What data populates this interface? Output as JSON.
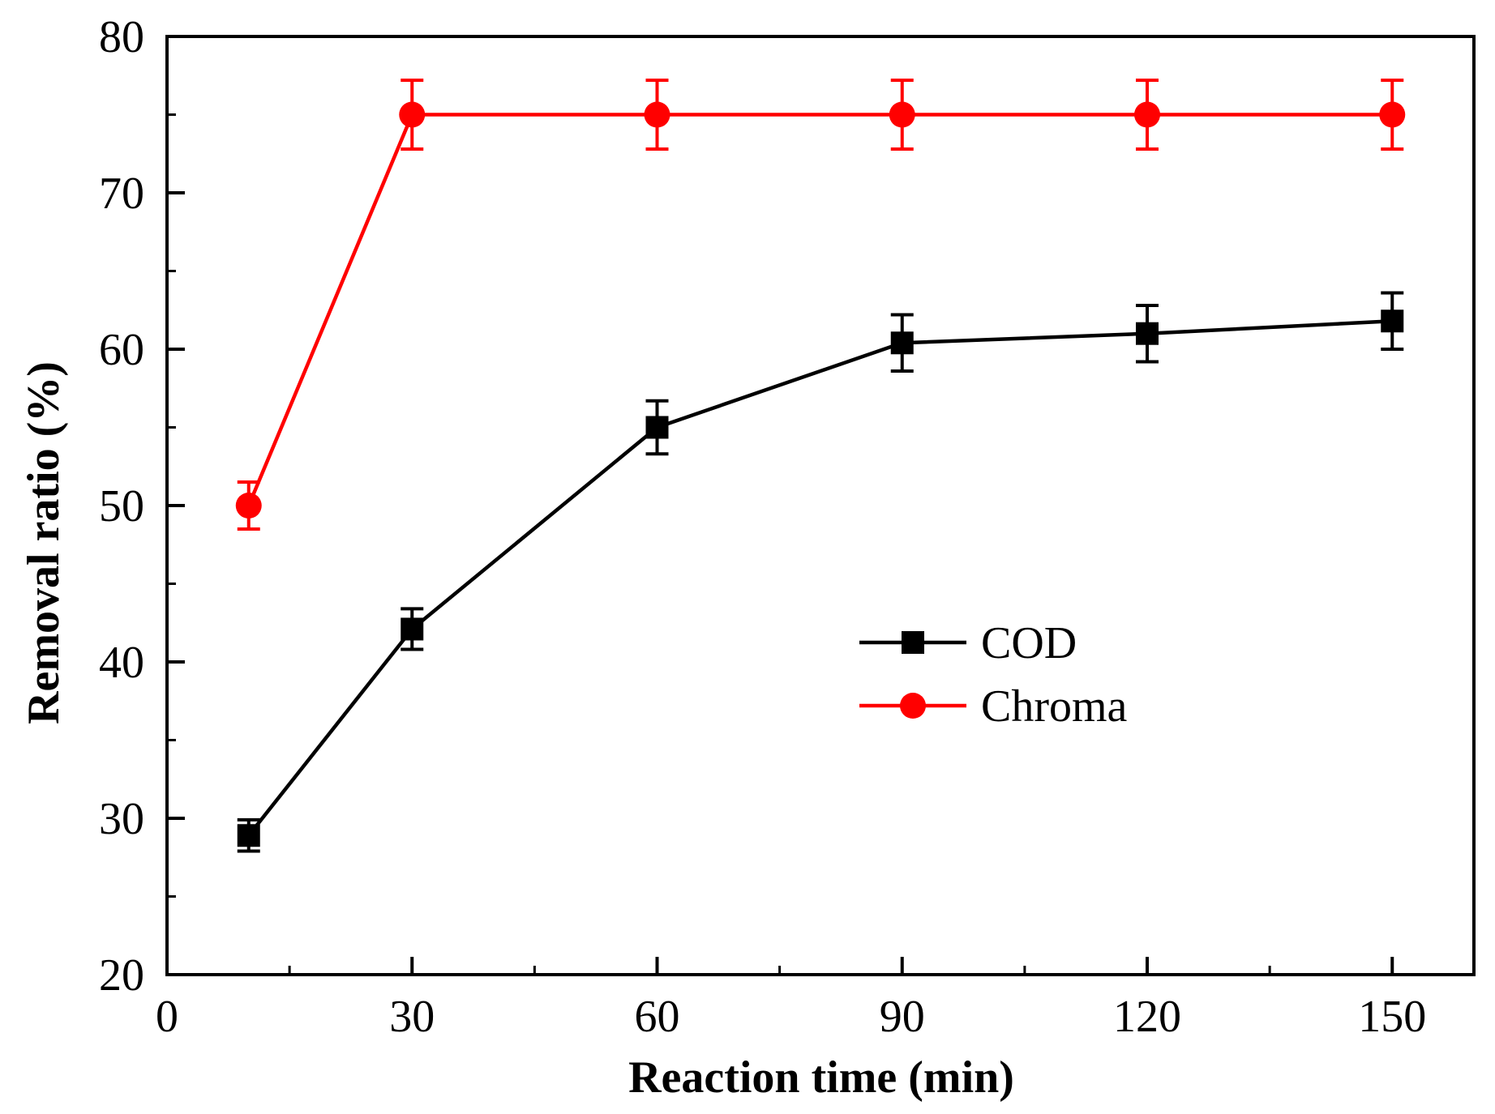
{
  "chart_data": {
    "type": "line",
    "xlabel": "Reaction time (min)",
    "ylabel": "Removal ratio (%)",
    "xlim": [
      0,
      160
    ],
    "ylim": [
      20,
      80
    ],
    "xticks": [
      0,
      30,
      60,
      90,
      120,
      150
    ],
    "yticks": [
      20,
      30,
      40,
      50,
      60,
      70,
      80
    ],
    "grid": false,
    "legend_position": "center-right",
    "series": [
      {
        "name": "COD",
        "color": "#000000",
        "marker": "square",
        "x": [
          10,
          30,
          60,
          90,
          120,
          150
        ],
        "values": [
          28.9,
          42.1,
          55.0,
          60.4,
          61.0,
          61.8
        ],
        "errors": [
          1.0,
          1.3,
          1.7,
          1.8,
          1.8,
          1.8
        ]
      },
      {
        "name": "Chroma",
        "color": "#ff0000",
        "marker": "circle",
        "x": [
          10,
          30,
          60,
          90,
          120,
          150
        ],
        "values": [
          50.0,
          75.0,
          75.0,
          75.0,
          75.0,
          75.0
        ],
        "errors": [
          1.5,
          2.2,
          2.2,
          2.2,
          2.2,
          2.2
        ]
      }
    ]
  }
}
